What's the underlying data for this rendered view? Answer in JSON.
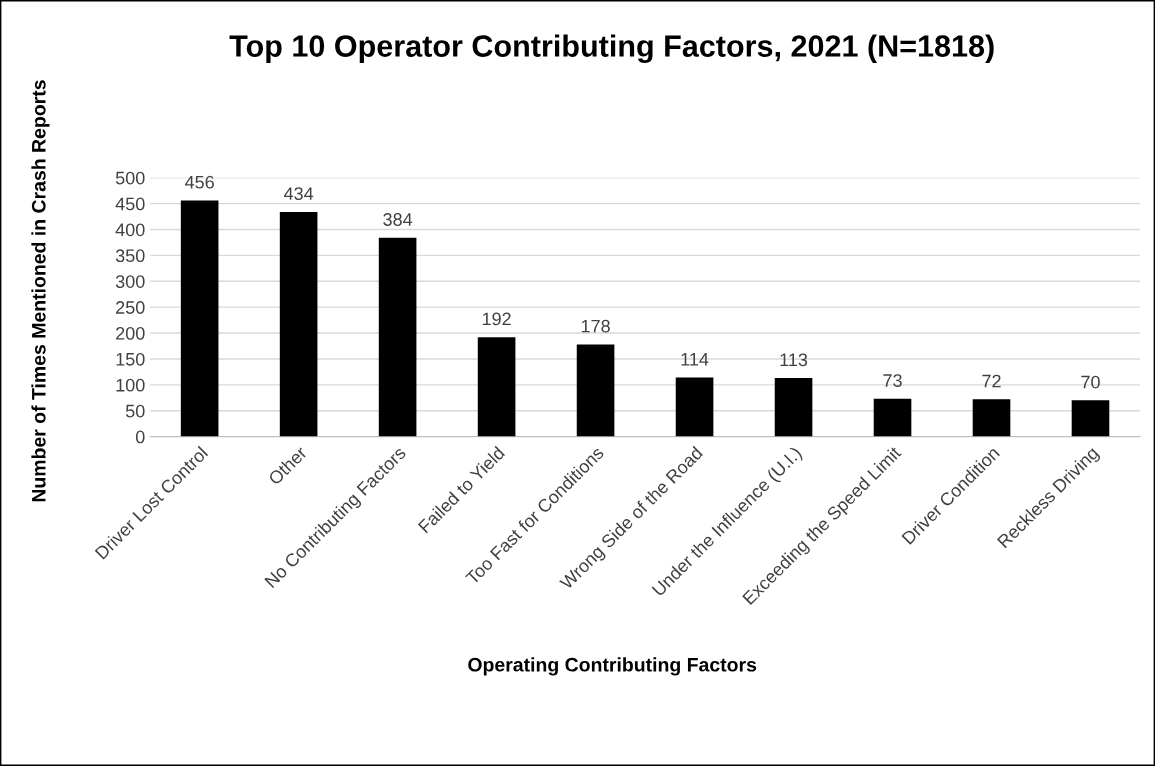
{
  "chart_data": {
    "type": "bar",
    "title": "Top 10 Operator Contributing Factors, 2021 (N=1818)",
    "xlabel": "Operating Contributing Factors",
    "ylabel": "Number of Times Mentioned in Crash Reports",
    "categories": [
      "Driver Lost Control",
      "Other",
      "No Contributing Factors",
      "Failed to Yield",
      "Too Fast for Conditions",
      "Wrong Side of the Road",
      "Under the Influence (U.I.)",
      "Exceeding the Speed Limit",
      "Driver Condition",
      "Reckless Driving"
    ],
    "values": [
      456,
      434,
      384,
      192,
      178,
      114,
      113,
      73,
      72,
      70
    ],
    "color": "#000000",
    "ylim": [
      0,
      500
    ],
    "yticks": [
      0,
      50,
      100,
      150,
      200,
      250,
      300,
      350,
      400,
      450,
      500
    ],
    "grid": "y",
    "data_labels": true,
    "legend": false
  }
}
